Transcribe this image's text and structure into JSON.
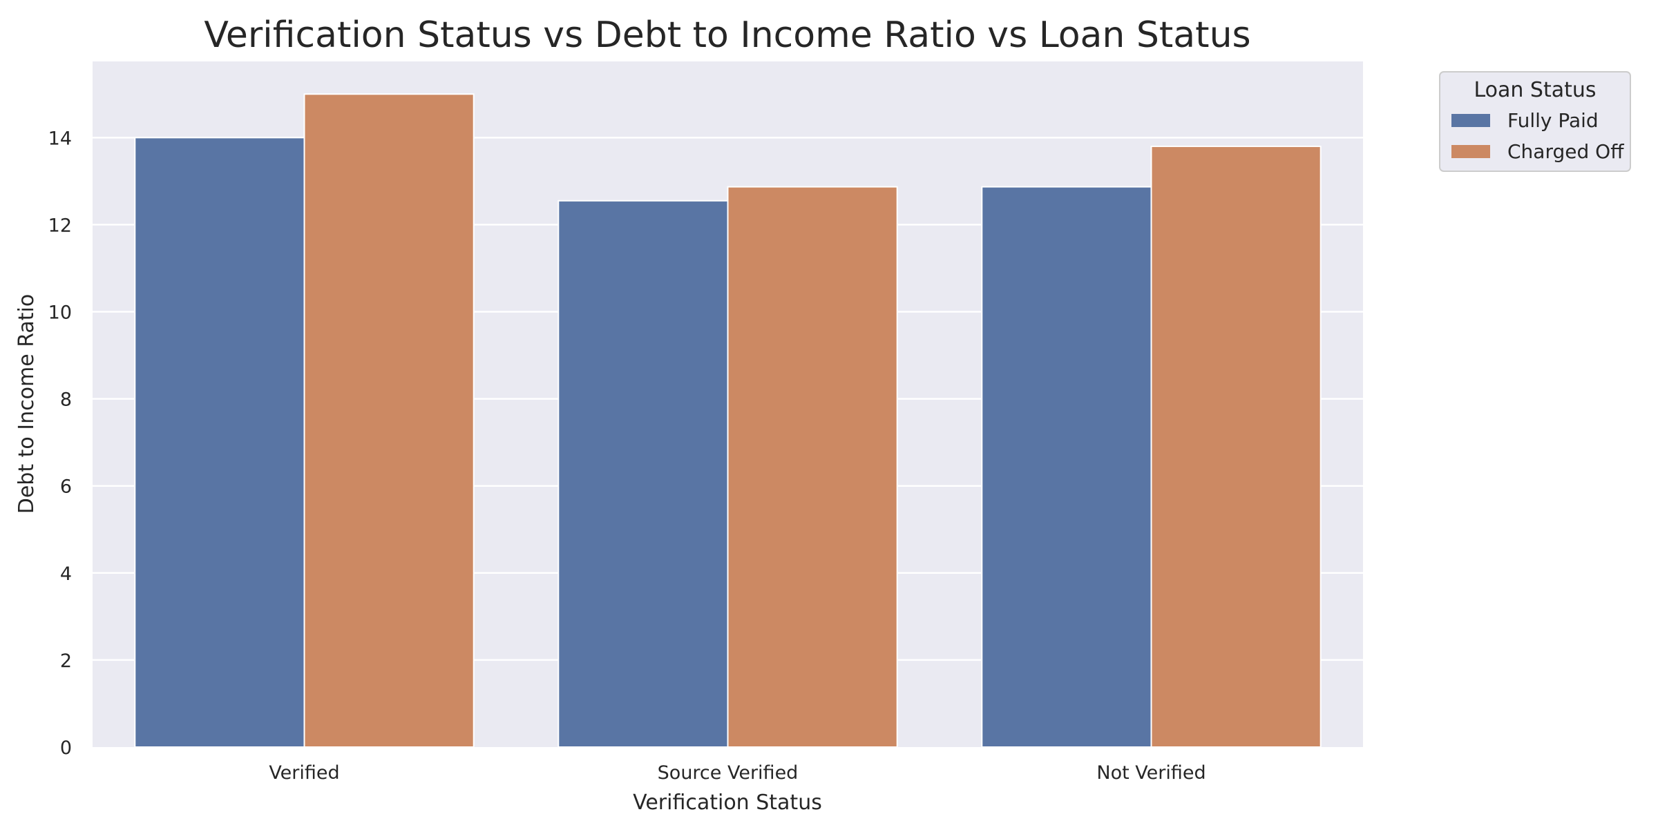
{
  "chart_data": {
    "type": "bar",
    "title": "Verification Status vs Debt to Income Ratio vs Loan Status",
    "xlabel": "Verification Status",
    "ylabel": "Debt to Income Ratio",
    "categories": [
      "Verified",
      "Source Verified",
      "Not Verified"
    ],
    "series": [
      {
        "name": "Fully Paid",
        "color": "#5975a4",
        "values": [
          14.0,
          12.55,
          12.87
        ]
      },
      {
        "name": "Charged Off",
        "color": "#cc8963",
        "values": [
          15.0,
          12.87,
          13.8
        ]
      }
    ],
    "ylim": [
      0,
      15.75
    ],
    "yticks": [
      0,
      2,
      4,
      6,
      8,
      10,
      12,
      14
    ],
    "grid": true,
    "legend": {
      "title": "Loan Status",
      "placement": "outside-top-right"
    },
    "plot_background": "#eaeaf2",
    "grid_color": "#ffffff"
  }
}
